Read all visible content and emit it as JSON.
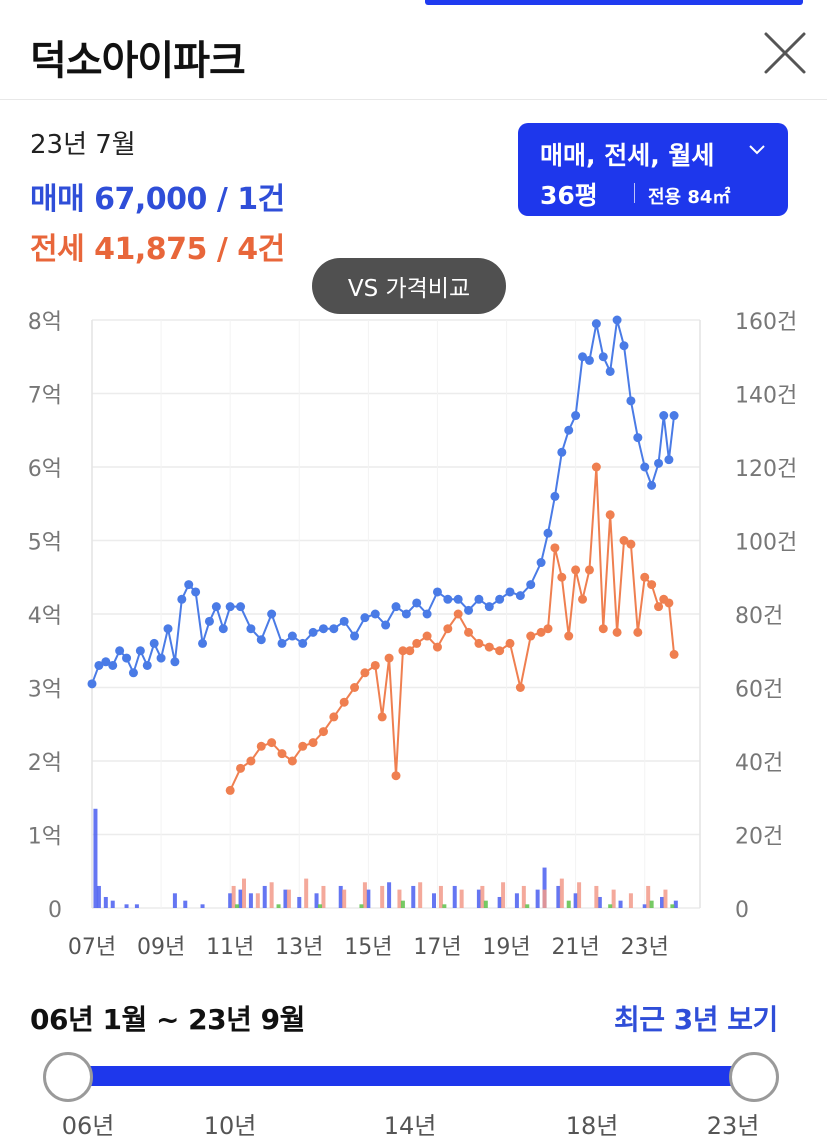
{
  "header": {
    "title": "덕소아이파크"
  },
  "summary": {
    "period": "23년 7월",
    "sale_line": "매매 67,000 / 1건",
    "jeonse_line": "전세 41,875 / 4건"
  },
  "filter": {
    "types": "매매, 전세, 월세",
    "pyeong": "36평",
    "area": "전용 84㎡"
  },
  "compare_button": "VS 가격비교",
  "colors": {
    "accent": "#1e37ec",
    "sale": "#4a7be6",
    "jeonse": "#ef7f50",
    "monthly": "#5ec14a"
  },
  "chart_data": {
    "type": "line",
    "x_tick_labels": [
      "07년",
      "09년",
      "11년",
      "13년",
      "15년",
      "17년",
      "19년",
      "21년",
      "23년"
    ],
    "x_ticks": [
      2007,
      2009,
      2011,
      2013,
      2015,
      2017,
      2019,
      2021,
      2023
    ],
    "xlim": [
      2007,
      2024.6
    ],
    "y_left_tick_labels": [
      "0",
      "1억",
      "2억",
      "3억",
      "4억",
      "5억",
      "6억",
      "7억",
      "8억"
    ],
    "y_left_lim": [
      0,
      8
    ],
    "y_right_tick_labels": [
      "0",
      "20건",
      "40건",
      "60건",
      "80건",
      "100건",
      "120건",
      "140건",
      "160건"
    ],
    "y_right_lim": [
      0,
      160
    ],
    "grid": true,
    "series": [
      {
        "name": "매매",
        "color": "#4a7be6",
        "x": [
          2007.0,
          2007.2,
          2007.4,
          2007.6,
          2007.8,
          2008.0,
          2008.2,
          2008.4,
          2008.6,
          2008.8,
          2009.0,
          2009.2,
          2009.4,
          2009.6,
          2009.8,
          2010.0,
          2010.2,
          2010.4,
          2010.6,
          2010.8,
          2011.0,
          2011.3,
          2011.6,
          2011.9,
          2012.2,
          2012.5,
          2012.8,
          2013.1,
          2013.4,
          2013.7,
          2014.0,
          2014.3,
          2014.6,
          2014.9,
          2015.2,
          2015.5,
          2015.8,
          2016.1,
          2016.4,
          2016.7,
          2017.0,
          2017.3,
          2017.6,
          2017.9,
          2018.2,
          2018.5,
          2018.8,
          2019.1,
          2019.4,
          2019.7,
          2020.0,
          2020.2,
          2020.4,
          2020.6,
          2020.8,
          2021.0,
          2021.2,
          2021.4,
          2021.6,
          2021.8,
          2022.0,
          2022.2,
          2022.4,
          2022.6,
          2022.8,
          2023.0,
          2023.2,
          2023.4,
          2023.55,
          2023.7,
          2023.85
        ],
        "values": [
          3.05,
          3.3,
          3.35,
          3.3,
          3.5,
          3.4,
          3.2,
          3.5,
          3.3,
          3.6,
          3.4,
          3.8,
          3.35,
          4.2,
          4.4,
          4.3,
          3.6,
          3.9,
          4.1,
          3.8,
          4.1,
          4.1,
          3.8,
          3.65,
          4.0,
          3.6,
          3.7,
          3.6,
          3.75,
          3.8,
          3.8,
          3.9,
          3.7,
          3.95,
          4.0,
          3.85,
          4.1,
          4.0,
          4.15,
          4.0,
          4.3,
          4.2,
          4.2,
          4.05,
          4.2,
          4.1,
          4.2,
          4.3,
          4.25,
          4.4,
          4.7,
          5.1,
          5.6,
          6.2,
          6.5,
          6.7,
          7.5,
          7.45,
          7.95,
          7.5,
          7.3,
          8.0,
          7.65,
          6.9,
          6.4,
          6.0,
          5.75,
          6.05,
          6.7,
          6.1,
          6.7
        ]
      },
      {
        "name": "전세",
        "color": "#ef7f50",
        "x": [
          2011.0,
          2011.3,
          2011.6,
          2011.9,
          2012.2,
          2012.5,
          2012.8,
          2013.1,
          2013.4,
          2013.7,
          2014.0,
          2014.3,
          2014.6,
          2014.9,
          2015.2,
          2015.4,
          2015.6,
          2015.8,
          2016.0,
          2016.2,
          2016.4,
          2016.7,
          2017.0,
          2017.3,
          2017.6,
          2017.9,
          2018.2,
          2018.5,
          2018.8,
          2019.1,
          2019.4,
          2019.7,
          2020.0,
          2020.2,
          2020.4,
          2020.6,
          2020.8,
          2021.0,
          2021.2,
          2021.4,
          2021.6,
          2021.8,
          2022.0,
          2022.2,
          2022.4,
          2022.6,
          2022.8,
          2023.0,
          2023.2,
          2023.4,
          2023.55,
          2023.7,
          2023.85
        ],
        "values": [
          1.6,
          1.9,
          2.0,
          2.2,
          2.25,
          2.1,
          2.0,
          2.2,
          2.25,
          2.4,
          2.6,
          2.8,
          3.0,
          3.2,
          3.3,
          2.6,
          3.4,
          1.8,
          3.5,
          3.5,
          3.6,
          3.7,
          3.55,
          3.8,
          4.0,
          3.75,
          3.6,
          3.55,
          3.5,
          3.6,
          3.0,
          3.7,
          3.75,
          3.8,
          4.9,
          4.5,
          3.7,
          4.6,
          4.2,
          4.6,
          6.0,
          3.8,
          5.35,
          3.75,
          5.0,
          4.95,
          3.75,
          4.5,
          4.4,
          4.1,
          4.2,
          4.15,
          3.45
        ]
      }
    ],
    "volume_series": [
      {
        "name": "매매 거래량",
        "color": "#4a5ef0",
        "x": [
          2007.1,
          2007.2,
          2007.4,
          2007.6,
          2008.0,
          2008.3,
          2009.4,
          2009.7,
          2010.2,
          2011.0,
          2011.3,
          2011.6,
          2012.0,
          2012.6,
          2013.0,
          2013.5,
          2014.2,
          2015.0,
          2015.6,
          2016.3,
          2016.9,
          2017.5,
          2018.2,
          2018.8,
          2019.3,
          2019.9,
          2020.1,
          2020.5,
          2021.0,
          2021.7,
          2022.3,
          2023.0,
          2023.5,
          2023.9
        ],
        "values": [
          27,
          6,
          3,
          2,
          1,
          1,
          4,
          2,
          1,
          4,
          5,
          4,
          6,
          5,
          3,
          4,
          6,
          5,
          7,
          6,
          4,
          6,
          5,
          3,
          4,
          5,
          11,
          6,
          4,
          3,
          2,
          1,
          3,
          2
        ]
      },
      {
        "name": "전세 거래량",
        "color": "#f29a8a",
        "x": [
          2011.1,
          2011.4,
          2011.8,
          2012.2,
          2012.7,
          2013.2,
          2013.7,
          2014.3,
          2014.9,
          2015.4,
          2015.9,
          2016.5,
          2017.1,
          2017.7,
          2018.3,
          2018.9,
          2019.5,
          2020.1,
          2020.6,
          2021.1,
          2021.6,
          2022.1,
          2022.6,
          2023.1,
          2023.6
        ],
        "values": [
          6,
          8,
          4,
          7,
          5,
          8,
          6,
          5,
          7,
          6,
          5,
          7,
          6,
          5,
          6,
          7,
          6,
          5,
          8,
          7,
          6,
          5,
          4,
          6,
          5
        ]
      },
      {
        "name": "월세 거래량",
        "color": "#5ec14a",
        "x": [
          2011.2,
          2012.4,
          2013.6,
          2014.8,
          2016.0,
          2017.2,
          2018.4,
          2019.6,
          2020.8,
          2022.0,
          2023.2,
          2023.8
        ],
        "values": [
          1,
          1,
          1,
          1,
          2,
          1,
          2,
          1,
          2,
          1,
          2,
          1
        ]
      }
    ]
  },
  "range": {
    "title": "06년 1월 ~ 23년 9월",
    "recent_link": "최근 3년 보기",
    "ticks": [
      "06년",
      "10년",
      "14년",
      "18년",
      "23년"
    ]
  }
}
